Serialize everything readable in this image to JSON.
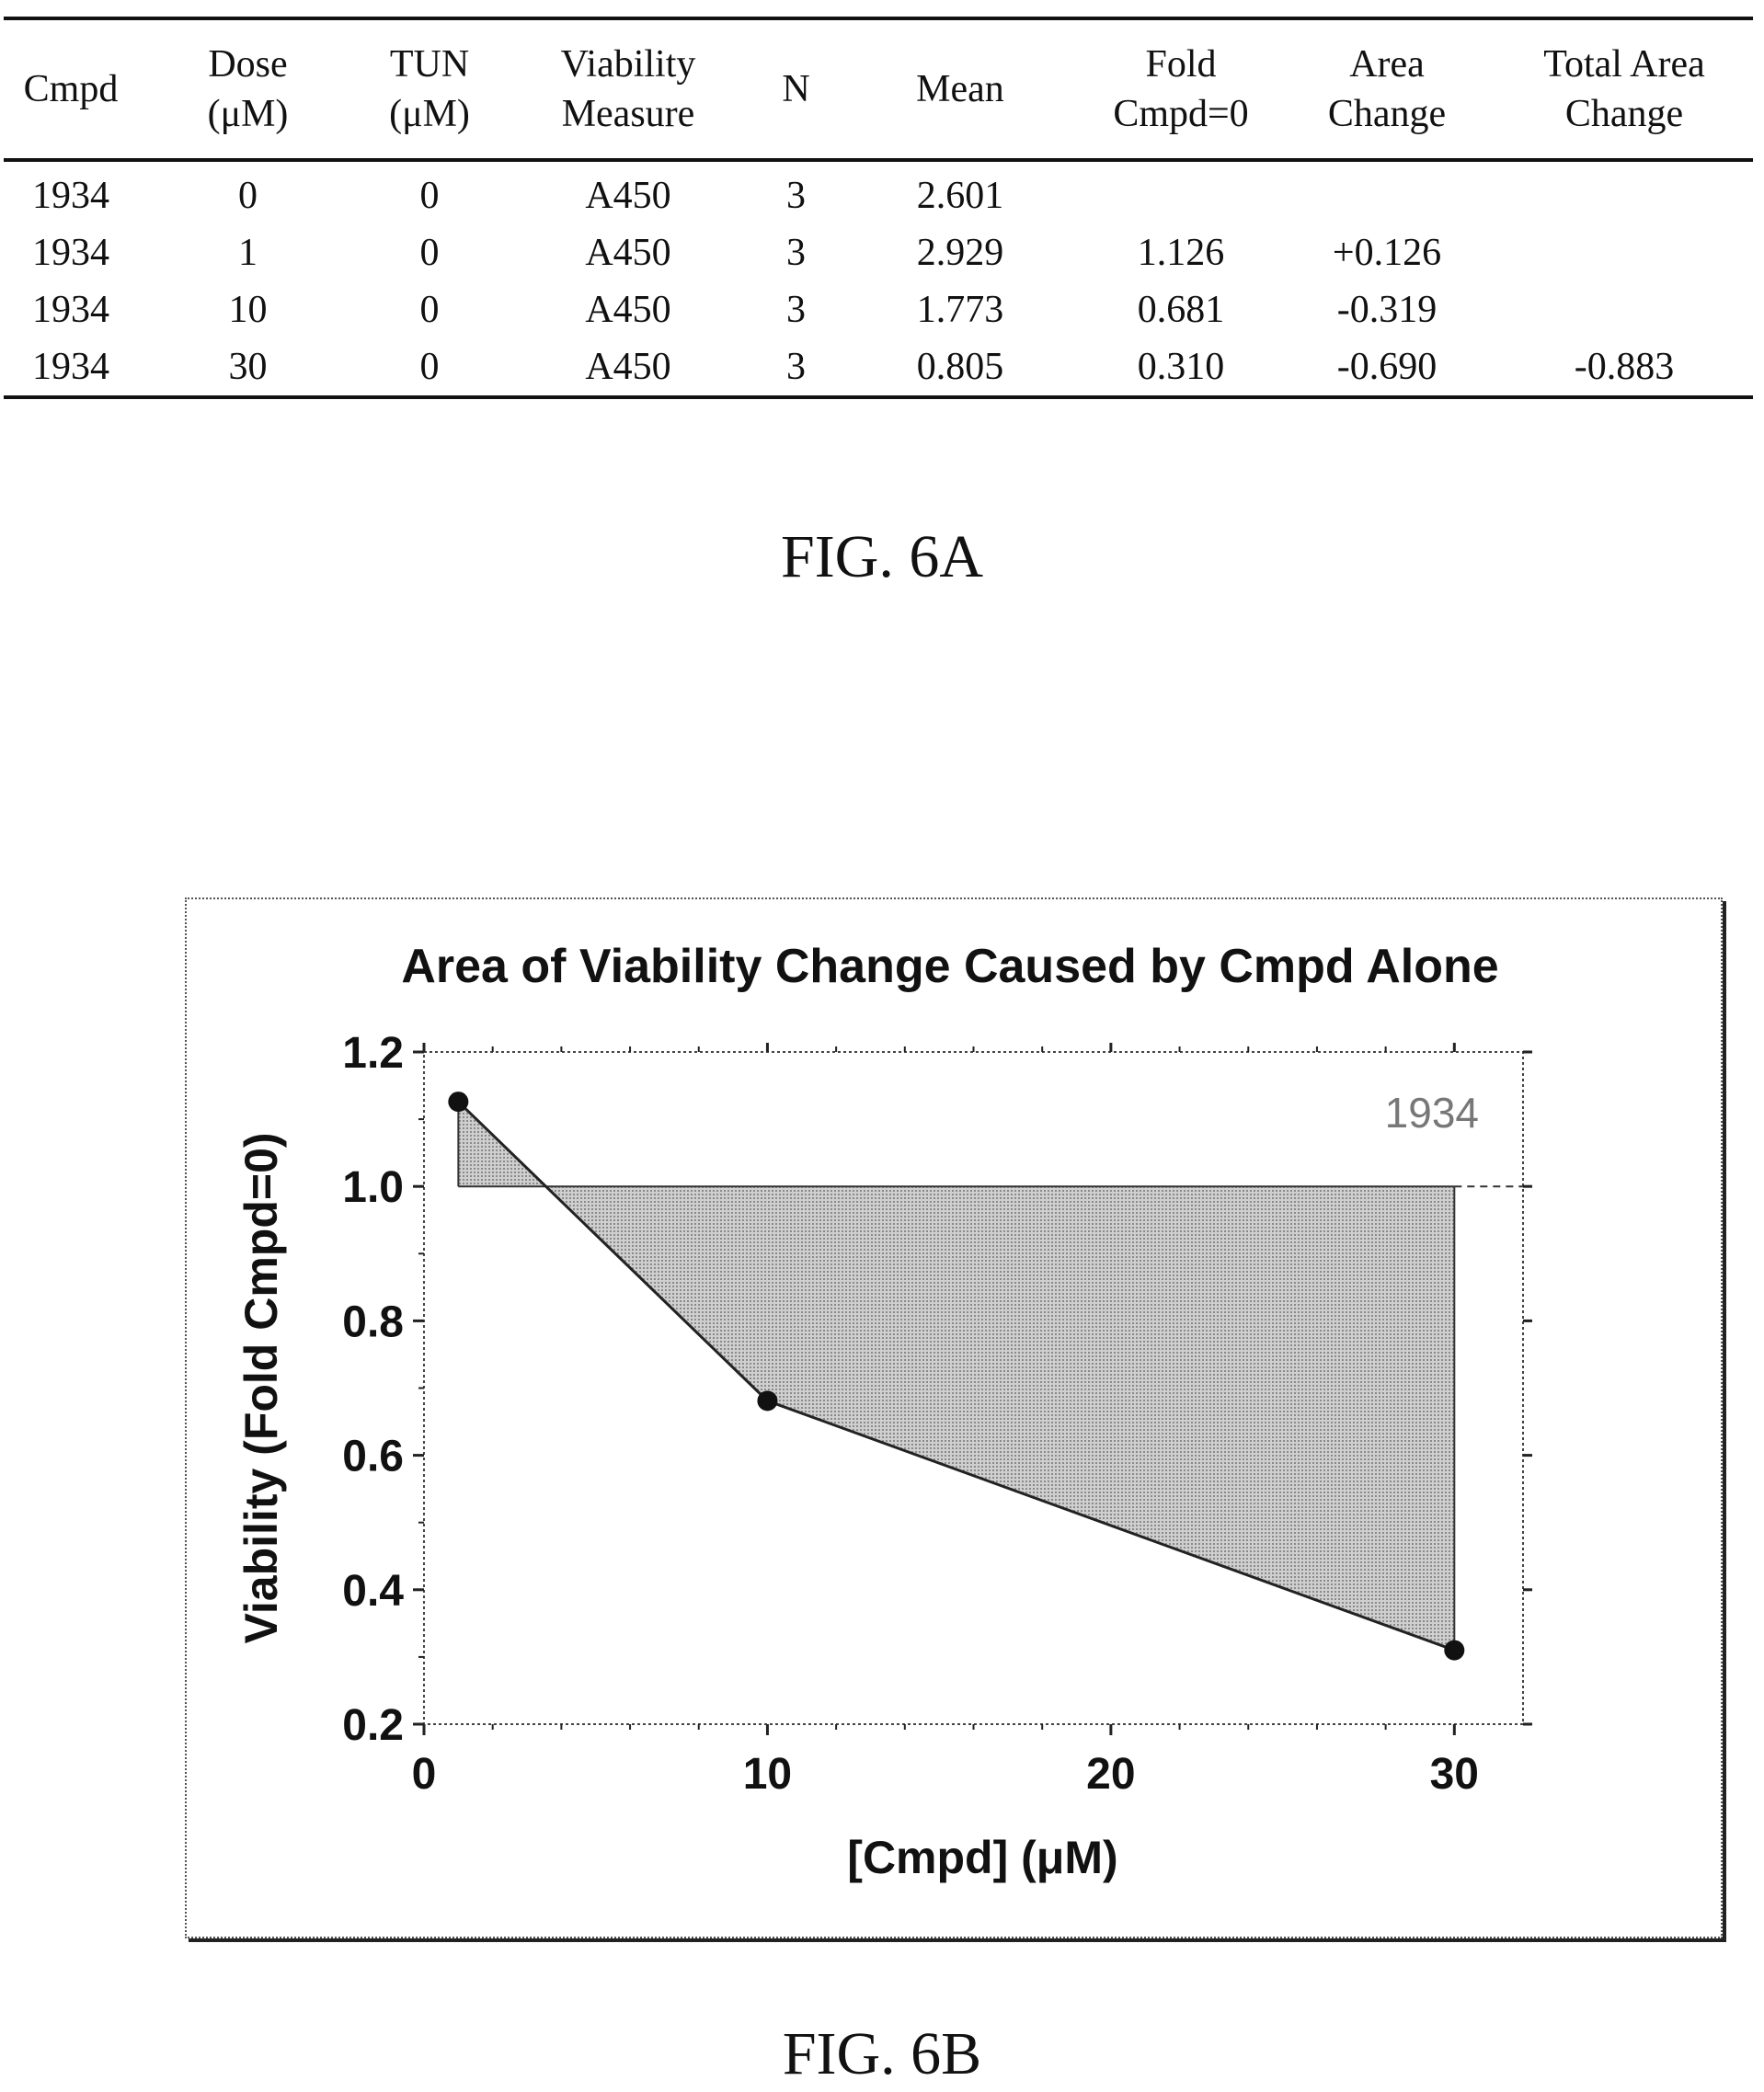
{
  "fig6a": {
    "caption": "FIG. 6A",
    "columns": [
      {
        "line1": "Cmpd",
        "line2": ""
      },
      {
        "line1": "Dose",
        "line2": "(μM)"
      },
      {
        "line1": "TUN",
        "line2": "(μM)"
      },
      {
        "line1": "Viability",
        "line2": "Measure"
      },
      {
        "line1": "N",
        "line2": ""
      },
      {
        "line1": "Mean",
        "line2": ""
      },
      {
        "line1": "Fold",
        "line2": "Cmpd=0"
      },
      {
        "line1": "Area",
        "line2": "Change"
      },
      {
        "line1": "Total Area",
        "line2": "Change"
      }
    ],
    "rows": [
      [
        "1934",
        "0",
        "0",
        "A450",
        "3",
        "2.601",
        "",
        "",
        ""
      ],
      [
        "1934",
        "1",
        "0",
        "A450",
        "3",
        "2.929",
        "1.126",
        "+0.126",
        ""
      ],
      [
        "1934",
        "10",
        "0",
        "A450",
        "3",
        "1.773",
        "0.681",
        "-0.319",
        ""
      ],
      [
        "1934",
        "30",
        "0",
        "A450",
        "3",
        "0.805",
        "0.310",
        "-0.690",
        "-0.883"
      ]
    ]
  },
  "fig6b": {
    "caption": "FIG. 6B"
  },
  "chart_data": {
    "type": "line",
    "title": "Area of Viability Change Caused by Cmpd Alone",
    "xlabel": "[Cmpd] (μM)",
    "ylabel": "Viability (Fold Cmpd=0)",
    "xlim": [
      0,
      32
    ],
    "ylim": [
      0.2,
      1.2
    ],
    "xticks": [
      0,
      10,
      20,
      30
    ],
    "yticks": [
      0.2,
      0.4,
      0.6,
      0.8,
      1.0,
      1.2
    ],
    "xtick_labels": [
      "0",
      "10",
      "20",
      "30"
    ],
    "ytick_labels": [
      "0.2",
      "0.4",
      "0.6",
      "0.8",
      "1.0",
      "1.2"
    ],
    "series": [
      {
        "name": "1934",
        "x": [
          1,
          10,
          30
        ],
        "y": [
          1.126,
          0.681,
          0.31
        ]
      }
    ],
    "reference_line": 1.0,
    "shaded_area": "between series and y = 1.0",
    "legend_position": "top-right",
    "grid": false
  }
}
